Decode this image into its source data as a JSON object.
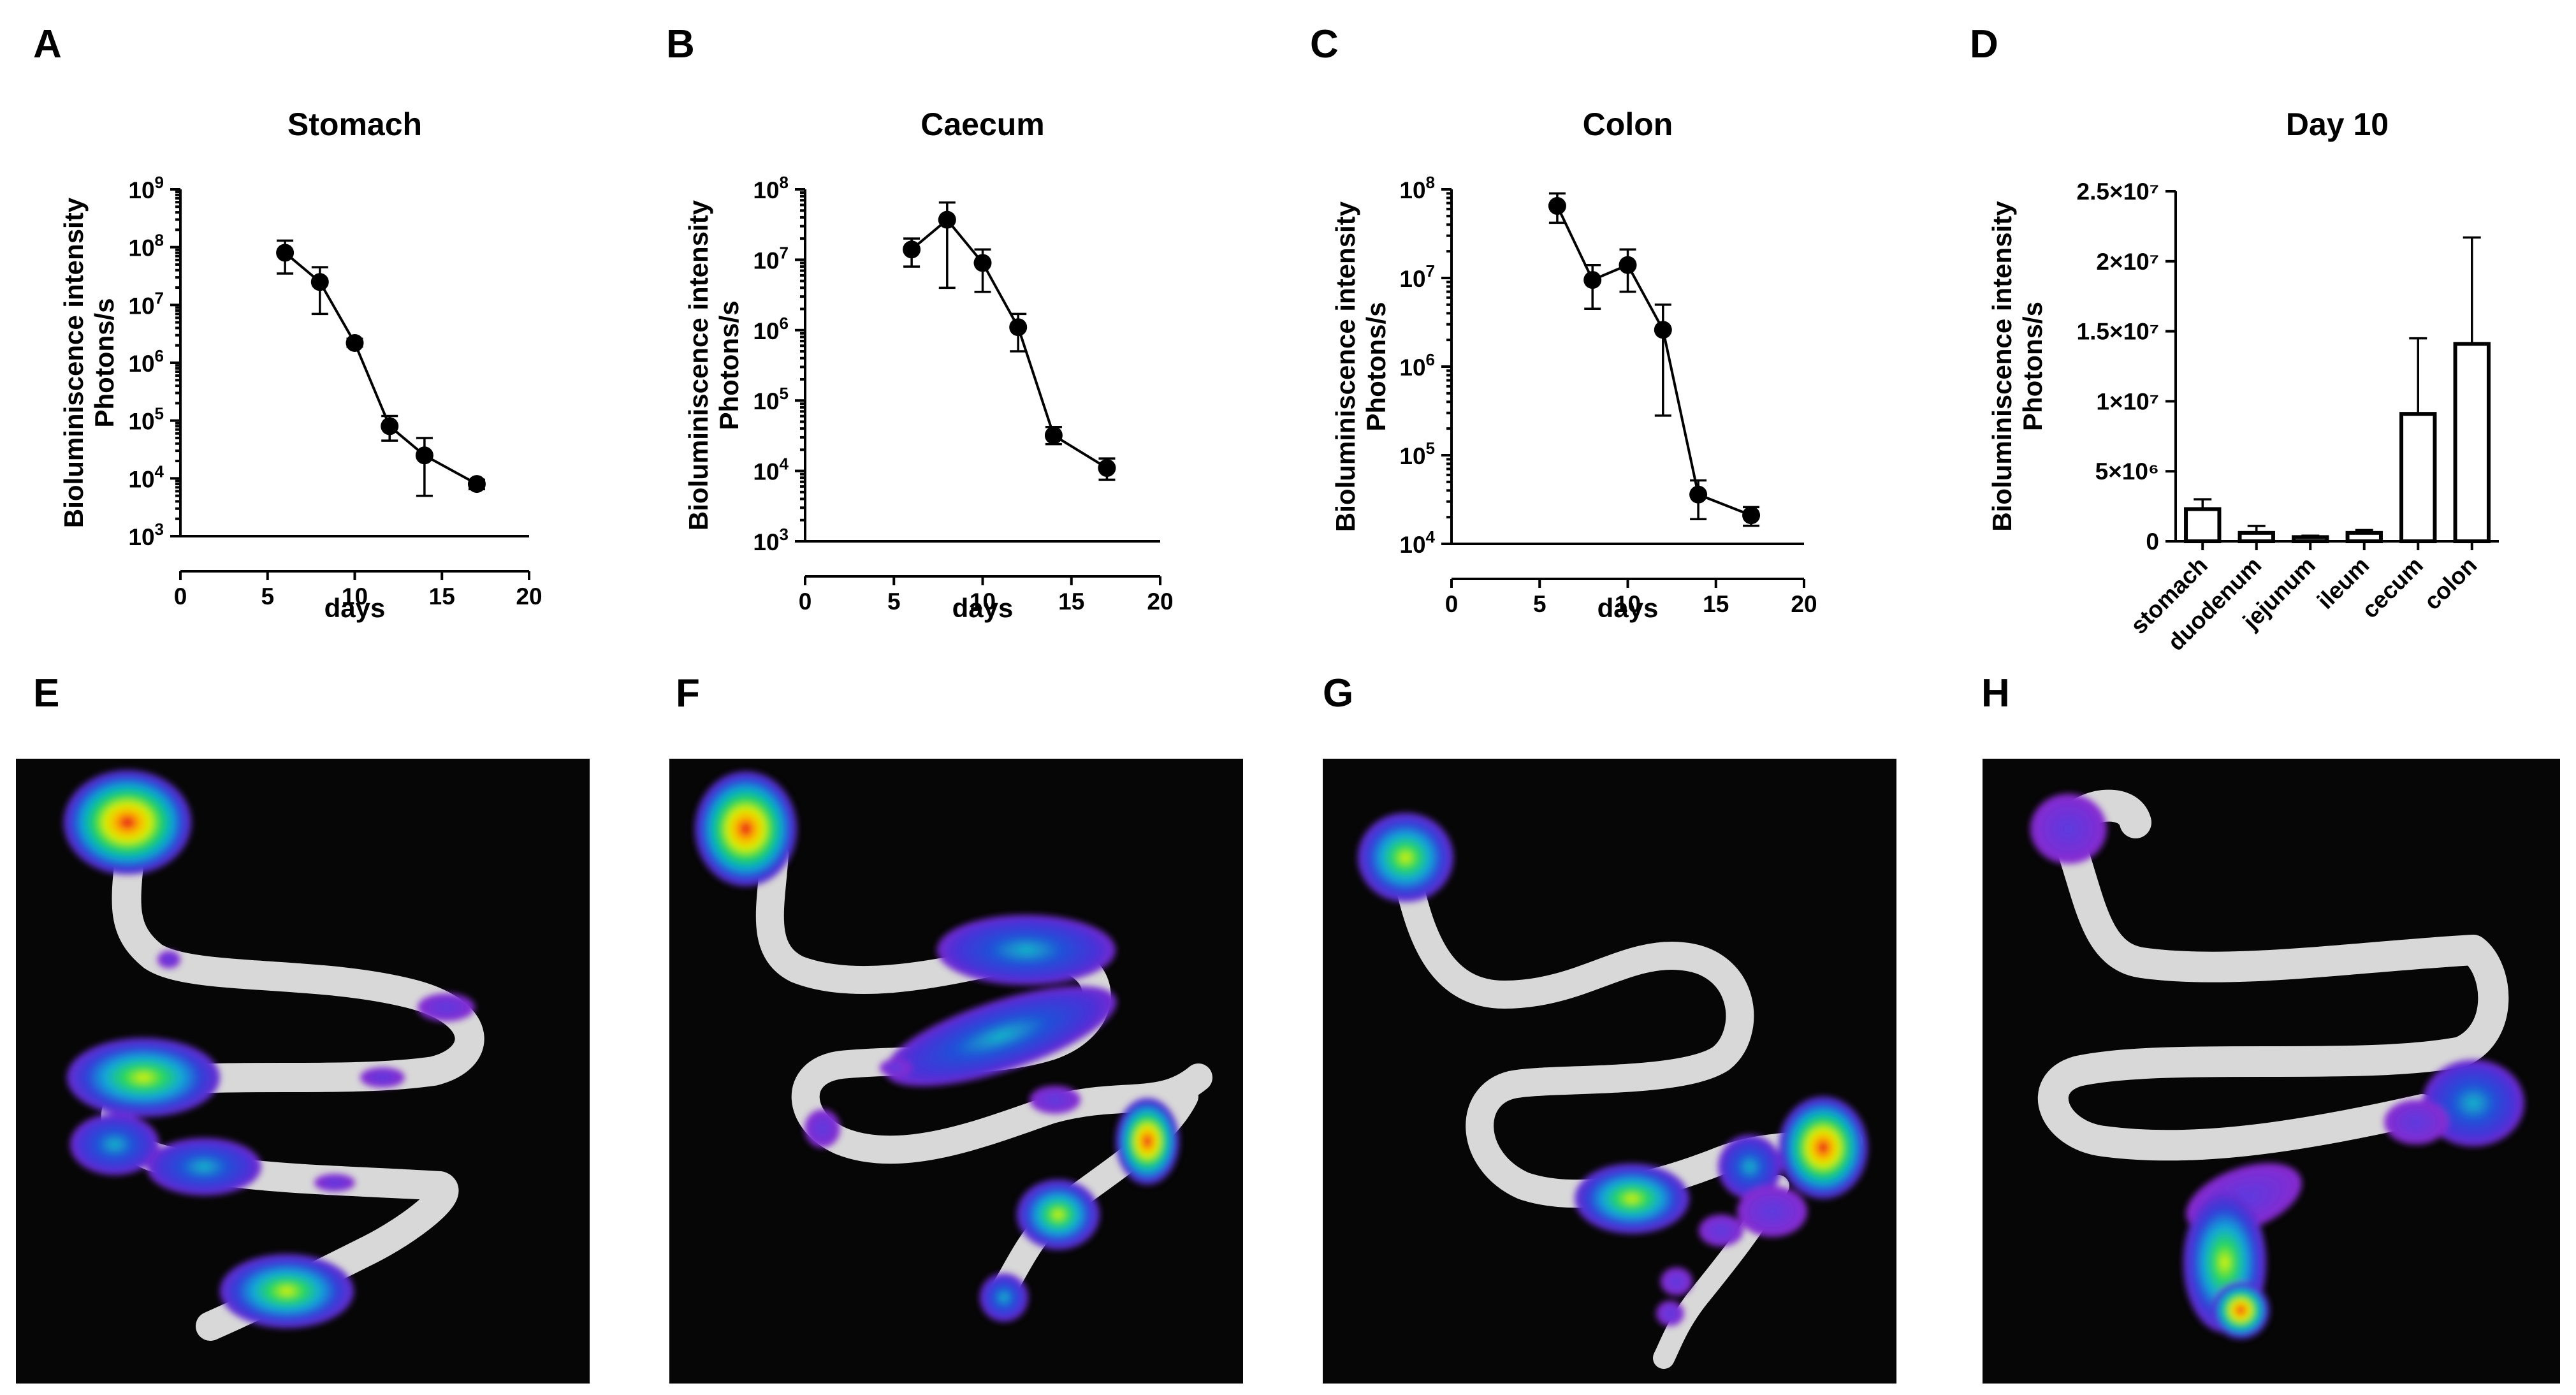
{
  "panels": {
    "A": "A",
    "B": "B",
    "C": "C",
    "D": "D",
    "E": "E",
    "F": "F",
    "G": "G",
    "H": "H"
  },
  "chart_data": [
    {
      "panel": "A",
      "type": "line",
      "title": "Stomach",
      "xlabel": "days",
      "ylabel": [
        "Bioluminiscence intensity",
        "Photons/s"
      ],
      "yscale": "log",
      "xlim": [
        0,
        20
      ],
      "ylim": [
        1000,
        1000000000
      ],
      "xticks": [
        0,
        5,
        10,
        15,
        20
      ],
      "yticks": [
        3,
        4,
        5,
        6,
        7,
        8,
        9
      ],
      "points": [
        {
          "x": 6,
          "y": 80000000,
          "err_lo": 35000000,
          "err_hi": 130000000
        },
        {
          "x": 8,
          "y": 25000000,
          "err_lo": 7000000,
          "err_hi": 45000000
        },
        {
          "x": 10,
          "y": 2200000,
          "err_lo": 1900000,
          "err_hi": 2600000
        },
        {
          "x": 12,
          "y": 80000,
          "err_lo": 45000,
          "err_hi": 120000
        },
        {
          "x": 14,
          "y": 25000,
          "err_lo": 5000,
          "err_hi": 50000
        },
        {
          "x": 17,
          "y": 8000,
          "err_lo": 6500,
          "err_hi": 9500
        }
      ]
    },
    {
      "panel": "B",
      "type": "line",
      "title": "Caecum",
      "xlabel": "days",
      "ylabel": [
        "Bioluminiscence intensity",
        "Photons/s"
      ],
      "yscale": "log",
      "xlim": [
        0,
        20
      ],
      "ylim": [
        1000,
        100000000
      ],
      "xticks": [
        0,
        5,
        10,
        15,
        20
      ],
      "yticks": [
        3,
        4,
        5,
        6,
        7,
        8
      ],
      "points": [
        {
          "x": 6,
          "y": 14000000,
          "err_lo": 8000000,
          "err_hi": 20000000
        },
        {
          "x": 8,
          "y": 37000000,
          "err_lo": 4000000,
          "err_hi": 65000000
        },
        {
          "x": 10,
          "y": 9000000,
          "err_lo": 3500000,
          "err_hi": 14000000
        },
        {
          "x": 12,
          "y": 1100000,
          "err_lo": 500000,
          "err_hi": 1700000
        },
        {
          "x": 14,
          "y": 32000,
          "err_lo": 24000,
          "err_hi": 42000
        },
        {
          "x": 17,
          "y": 11000,
          "err_lo": 7500,
          "err_hi": 15000
        }
      ]
    },
    {
      "panel": "C",
      "type": "line",
      "title": "Colon",
      "xlabel": "days",
      "ylabel": [
        "Bioluminiscence intensity",
        "Photons/s"
      ],
      "yscale": "log",
      "xlim": [
        0,
        20
      ],
      "ylim": [
        10000,
        100000000
      ],
      "xticks": [
        0,
        5,
        10,
        15,
        20
      ],
      "yticks": [
        4,
        5,
        6,
        7,
        8
      ],
      "points": [
        {
          "x": 6,
          "y": 65000000,
          "err_lo": 42000000,
          "err_hi": 90000000
        },
        {
          "x": 8,
          "y": 9500000,
          "err_lo": 4500000,
          "err_hi": 14000000
        },
        {
          "x": 10,
          "y": 14000000,
          "err_lo": 7000000,
          "err_hi": 21000000
        },
        {
          "x": 12,
          "y": 2600000,
          "err_lo": 280000,
          "err_hi": 5000000
        },
        {
          "x": 14,
          "y": 36000,
          "err_lo": 19000,
          "err_hi": 52000
        },
        {
          "x": 17,
          "y": 21000,
          "err_lo": 16000,
          "err_hi": 26000
        }
      ]
    },
    {
      "panel": "D",
      "type": "bar",
      "title": "Day 10",
      "xlabel": "",
      "ylabel": [
        "Bioluminiscence intensity",
        "Photons/s"
      ],
      "ylim": [
        0,
        25000000
      ],
      "yticks": [
        0,
        5000000,
        10000000,
        15000000,
        20000000,
        25000000
      ],
      "yticklabels": [
        "0",
        "5×10⁶",
        "1×10⁷",
        "1.5×10⁷",
        "2×10⁷",
        "2.5×10⁷"
      ],
      "categories": [
        "stomach",
        "duodenum",
        "jejunum",
        "ileum",
        "cecum",
        "colon"
      ],
      "values": [
        2300000,
        600000,
        300000,
        600000,
        9100000,
        14100000
      ],
      "errors_hi": [
        3000000,
        1100000,
        400000,
        800000,
        14500000,
        21700000
      ]
    }
  ],
  "images": [
    {
      "panel": "E",
      "icon": "gut-bioluminescence-image-stomach"
    },
    {
      "panel": "F",
      "icon": "gut-bioluminescence-image-caecum"
    },
    {
      "panel": "G",
      "icon": "gut-bioluminescence-image-colon"
    },
    {
      "panel": "H",
      "icon": "gut-bioluminescence-image-colon-day10"
    }
  ]
}
